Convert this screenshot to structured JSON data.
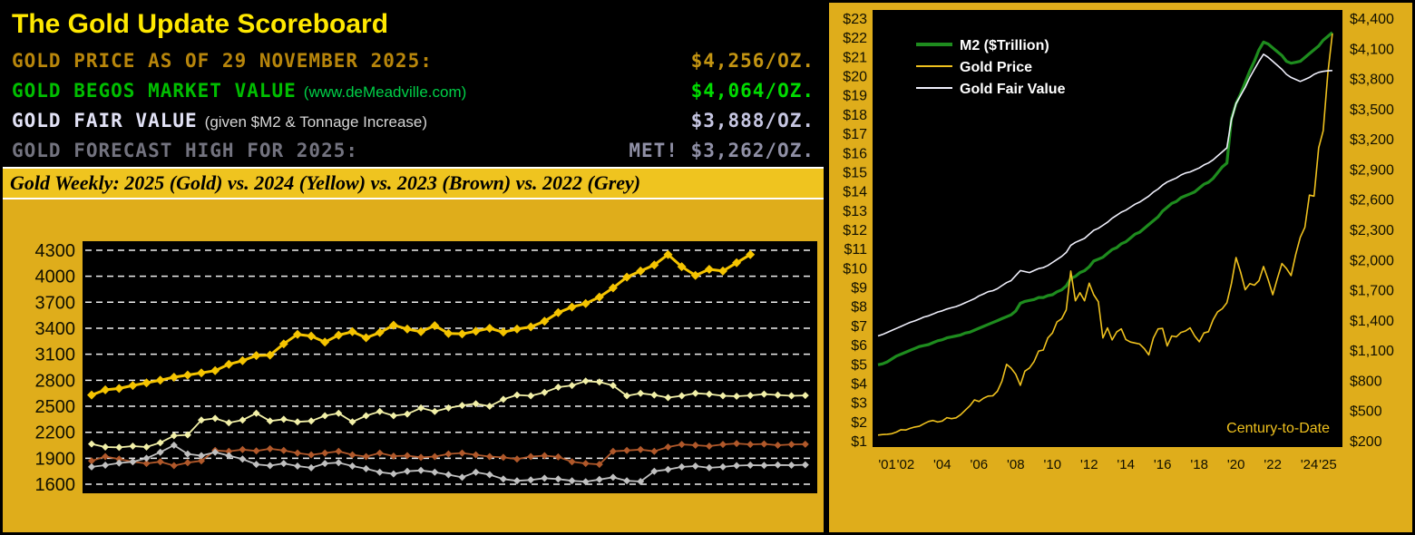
{
  "colors": {
    "page_background": "#DFAD1B",
    "scoreboard_background": "#000000",
    "banner_background": "#EFC41F",
    "divider": "#000000",
    "title": "#FFE800"
  },
  "scoreboard": {
    "title": "The Gold Update Scoreboard",
    "rows": [
      {
        "label": "GOLD PRICE AS OF 29 NOVEMBER 2025:",
        "note": "",
        "value": "$4,256/OZ.",
        "label_color": "#B8860B",
        "note_color": "#B8860B",
        "value_color": "#C49512"
      },
      {
        "label": "GOLD BEGOS MARKET VALUE",
        "note": "(www.deMeadville.com)",
        "value": "$4,064/OZ.",
        "label_color": "#00BE00",
        "note_color": "#00D048",
        "value_color": "#00DC00"
      },
      {
        "label": "GOLD FAIR VALUE",
        "note": "(given $M2 & Tonnage Increase)",
        "value": "$3,888/OZ.",
        "label_color": "#E2E2F6",
        "note_color": "#D6D6D6",
        "value_color": "#C6C6E2"
      },
      {
        "label": "GOLD FORECAST HIGH FOR 2025:",
        "note": "",
        "value": "MET! $3,262/OZ.",
        "label_color": "#73737F",
        "note_color": "#73737F",
        "value_color": "#9090A6"
      }
    ]
  },
  "banner": {
    "text": "Gold Weekly:  2025 (Gold) vs. 2024 (Yellow) vs. 2023 (Brown) vs. 2022 (Grey)"
  },
  "chart_data": [
    {
      "id": "weekly",
      "type": "line",
      "title": "Gold Weekly: 2025 (Gold) vs. 2024 (Yellow) vs. 2023 (Brown) vs. 2022 (Grey)",
      "plot_bg": "#000000",
      "grid": "dashed",
      "grid_color": "#F0F0F0",
      "tick_color": "#100F00",
      "ylim": [
        1496,
        4404
      ],
      "y_ticks": [
        4300,
        4000,
        3700,
        3400,
        3100,
        2800,
        2500,
        2200,
        1900,
        1600
      ],
      "x_slots": 53,
      "series": [
        {
          "name": "2025 (Gold)",
          "color": "#F5C400",
          "line_width": 3,
          "marker": "diamond",
          "marker_size": 5,
          "values": [
            2630,
            2690,
            2705,
            2740,
            2770,
            2800,
            2835,
            2860,
            2885,
            2910,
            2985,
            3025,
            3085,
            3090,
            3220,
            3330,
            3310,
            3240,
            3320,
            3360,
            3290,
            3350,
            3435,
            3390,
            3360,
            3430,
            3340,
            3335,
            3365,
            3400,
            3355,
            3390,
            3415,
            3480,
            3580,
            3645,
            3685,
            3760,
            3865,
            3990,
            4060,
            4130,
            4250,
            4110,
            4010,
            4080,
            4060,
            4155,
            4250
          ]
        },
        {
          "name": "2024 (Yellow)",
          "color": "#F2F0A8",
          "line_width": 1.8,
          "marker": "diamond",
          "marker_size": 4,
          "values": [
            2065,
            2030,
            2025,
            2040,
            2030,
            2080,
            2160,
            2170,
            2340,
            2360,
            2310,
            2340,
            2420,
            2330,
            2350,
            2320,
            2330,
            2390,
            2420,
            2320,
            2390,
            2440,
            2390,
            2410,
            2480,
            2440,
            2480,
            2510,
            2530,
            2500,
            2580,
            2630,
            2620,
            2660,
            2720,
            2740,
            2790,
            2780,
            2740,
            2620,
            2650,
            2630,
            2600,
            2620,
            2650,
            2640,
            2620,
            2615,
            2625,
            2640,
            2630,
            2620,
            2625
          ]
        },
        {
          "name": "2023 (Brown)",
          "color": "#B0582A",
          "line_width": 1.8,
          "marker": "diamond",
          "marker_size": 4,
          "values": [
            1870,
            1920,
            1890,
            1860,
            1840,
            1860,
            1815,
            1850,
            1870,
            1990,
            1980,
            2000,
            1985,
            2010,
            1990,
            1960,
            1940,
            1960,
            1980,
            1940,
            1920,
            1960,
            1925,
            1930,
            1910,
            1920,
            1950,
            1960,
            1940,
            1920,
            1910,
            1890,
            1920,
            1930,
            1915,
            1860,
            1840,
            1830,
            1980,
            1990,
            2000,
            1980,
            2030,
            2060,
            2050,
            2040,
            2060,
            2070,
            2060,
            2065,
            2050,
            2060,
            2062
          ]
        },
        {
          "name": "2022 (Grey)",
          "color": "#C0C0C0",
          "line_width": 1.8,
          "marker": "diamond",
          "marker_size": 4,
          "values": [
            1800,
            1820,
            1845,
            1860,
            1900,
            1970,
            2050,
            1950,
            1930,
            1970,
            1930,
            1890,
            1830,
            1815,
            1840,
            1810,
            1790,
            1840,
            1850,
            1810,
            1780,
            1740,
            1720,
            1750,
            1760,
            1740,
            1710,
            1680,
            1740,
            1710,
            1660,
            1640,
            1650,
            1670,
            1660,
            1640,
            1630,
            1655,
            1680,
            1640,
            1632,
            1750,
            1770,
            1800,
            1810,
            1790,
            1800,
            1815,
            1820,
            1818,
            1822,
            1820,
            1824
          ]
        }
      ]
    },
    {
      "id": "century",
      "type": "line",
      "annotation": "Century-to-Date",
      "annotation_color": "#EFC11E",
      "plot_bg": "#000000",
      "tick_color": "#100F00",
      "legend_text_color": "#FFFFFF",
      "left_lim": [
        1,
        23
      ],
      "right_lim": [
        200,
        4400
      ],
      "x_range": [
        2001,
        2026
      ],
      "left_ticks": [
        {
          "v": 23,
          "label": "$23"
        },
        {
          "v": 22,
          "label": "$22"
        },
        {
          "v": 21,
          "label": "$21"
        },
        {
          "v": 20,
          "label": "$20"
        },
        {
          "v": 19,
          "label": "$19"
        },
        {
          "v": 18,
          "label": "$18"
        },
        {
          "v": 17,
          "label": "$17"
        },
        {
          "v": 16,
          "label": "$16"
        },
        {
          "v": 15,
          "label": "$15"
        },
        {
          "v": 14,
          "label": "$14"
        },
        {
          "v": 13,
          "label": "$13"
        },
        {
          "v": 12,
          "label": "$12"
        },
        {
          "v": 11,
          "label": "$11"
        },
        {
          "v": 10,
          "label": "$10"
        },
        {
          "v": 9,
          "label": "$9"
        },
        {
          "v": 8,
          "label": "$8"
        },
        {
          "v": 7,
          "label": "$7"
        },
        {
          "v": 6,
          "label": "$6"
        },
        {
          "v": 5,
          "label": "$5"
        },
        {
          "v": 4,
          "label": "$4"
        },
        {
          "v": 3,
          "label": "$3"
        },
        {
          "v": 2,
          "label": "$2"
        },
        {
          "v": 1,
          "label": "$1"
        }
      ],
      "right_ticks": [
        {
          "v": 4400,
          "label": "$4,400"
        },
        {
          "v": 4100,
          "label": "$4,100"
        },
        {
          "v": 3800,
          "label": "$3,800"
        },
        {
          "v": 3500,
          "label": "$3,500"
        },
        {
          "v": 3200,
          "label": "$3,200"
        },
        {
          "v": 2900,
          "label": "$2,900"
        },
        {
          "v": 2600,
          "label": "$2,600"
        },
        {
          "v": 2300,
          "label": "$2,300"
        },
        {
          "v": 2000,
          "label": "$2,000"
        },
        {
          "v": 1700,
          "label": "$1,700"
        },
        {
          "v": 1400,
          "label": "$1,400"
        },
        {
          "v": 1100,
          "label": "$1,100"
        },
        {
          "v": 800,
          "label": "$800"
        },
        {
          "v": 500,
          "label": "$500"
        },
        {
          "v": 200,
          "label": "$200"
        }
      ],
      "x_ticks": [
        {
          "label": "'01",
          "year": 2001
        },
        {
          "label": "'02",
          "year": 2002
        },
        {
          "label": "'04",
          "year": 2004
        },
        {
          "label": "'06",
          "year": 2006
        },
        {
          "label": "'08",
          "year": 2008
        },
        {
          "label": "'10",
          "year": 2010
        },
        {
          "label": "'12",
          "year": 2012
        },
        {
          "label": "'14",
          "year": 2014
        },
        {
          "label": "'16",
          "year": 2016
        },
        {
          "label": "'18",
          "year": 2018
        },
        {
          "label": "'20",
          "year": 2020
        },
        {
          "label": "'22",
          "year": 2022
        },
        {
          "label": "'24",
          "year": 2024
        },
        {
          "label": "'25",
          "year": 2025
        }
      ],
      "legend": [
        {
          "label": "M2 ($Trillion)",
          "color": "#1E8C1E",
          "line_width": 4
        },
        {
          "label": "Gold Price",
          "color": "#EFC11E",
          "line_width": 2
        },
        {
          "label": "Gold Fair Value",
          "color": "#F0F0FC",
          "line_width": 2
        }
      ],
      "series": [
        {
          "name": "M2 ($Trillion)",
          "axis": "left",
          "color": "#1E8C1E",
          "line_width": 3.2,
          "x_start": 2001.0,
          "x_step": 0.25,
          "values": [
            5.0,
            5.05,
            5.15,
            5.3,
            5.45,
            5.55,
            5.65,
            5.75,
            5.85,
            5.95,
            6.0,
            6.05,
            6.15,
            6.25,
            6.3,
            6.4,
            6.45,
            6.5,
            6.55,
            6.65,
            6.7,
            6.8,
            6.9,
            7.0,
            7.1,
            7.2,
            7.3,
            7.4,
            7.5,
            7.6,
            7.8,
            8.2,
            8.3,
            8.35,
            8.4,
            8.5,
            8.5,
            8.6,
            8.65,
            8.8,
            8.9,
            9.1,
            9.5,
            9.6,
            9.8,
            9.9,
            10.1,
            10.4,
            10.5,
            10.6,
            10.8,
            11.0,
            11.1,
            11.3,
            11.4,
            11.6,
            11.8,
            11.9,
            12.1,
            12.3,
            12.5,
            12.7,
            13.0,
            13.2,
            13.4,
            13.5,
            13.7,
            13.8,
            13.9,
            14.0,
            14.2,
            14.4,
            14.5,
            14.7,
            15.0,
            15.3,
            15.5,
            17.8,
            18.6,
            19.1,
            19.7,
            20.3,
            20.8,
            21.4,
            21.8,
            21.7,
            21.5,
            21.3,
            21.1,
            20.8,
            20.7,
            20.75,
            20.8,
            21.0,
            21.2,
            21.4,
            21.6,
            21.9,
            22.1,
            22.3
          ]
        },
        {
          "name": "Gold Price",
          "axis": "right",
          "color": "#EFC11E",
          "line_width": 1.6,
          "x_start": 2001.0,
          "x_step": 0.25,
          "values": [
            265,
            270,
            273,
            278,
            295,
            318,
            315,
            332,
            345,
            352,
            378,
            400,
            410,
            395,
            405,
            438,
            428,
            436,
            468,
            512,
            555,
            615,
            598,
            632,
            652,
            655,
            700,
            800,
            968,
            930,
            870,
            760,
            900,
            932,
            995,
            1100,
            1110,
            1230,
            1280,
            1390,
            1420,
            1510,
            1895,
            1600,
            1680,
            1600,
            1775,
            1660,
            1590,
            1230,
            1330,
            1210,
            1290,
            1320,
            1215,
            1190,
            1180,
            1170,
            1125,
            1062,
            1230,
            1320,
            1325,
            1150,
            1250,
            1242,
            1285,
            1300,
            1330,
            1250,
            1192,
            1280,
            1292,
            1410,
            1490,
            1520,
            1580,
            1770,
            2030,
            1885,
            1710,
            1770,
            1755,
            1800,
            1940,
            1810,
            1660,
            1820,
            1970,
            1920,
            1850,
            2060,
            2230,
            2330,
            2650,
            2640,
            3120,
            3290,
            3860,
            4256
          ]
        },
        {
          "name": "Gold Fair Value",
          "axis": "right",
          "color": "#F0F0FC",
          "line_width": 1.6,
          "x_start": 2001.0,
          "x_step": 0.25,
          "values": [
            1250,
            1265,
            1285,
            1305,
            1325,
            1345,
            1365,
            1385,
            1400,
            1418,
            1438,
            1450,
            1468,
            1488,
            1500,
            1518,
            1530,
            1542,
            1560,
            1580,
            1600,
            1620,
            1648,
            1668,
            1690,
            1700,
            1720,
            1750,
            1780,
            1800,
            1850,
            1900,
            1890,
            1880,
            1900,
            1920,
            1930,
            1950,
            1980,
            2010,
            2040,
            2080,
            2150,
            2180,
            2200,
            2220,
            2260,
            2300,
            2320,
            2350,
            2380,
            2420,
            2450,
            2480,
            2500,
            2530,
            2560,
            2580,
            2610,
            2640,
            2680,
            2710,
            2750,
            2780,
            2800,
            2820,
            2850,
            2870,
            2880,
            2900,
            2920,
            2950,
            2970,
            3000,
            3040,
            3080,
            3120,
            3400,
            3560,
            3640,
            3720,
            3820,
            3900,
            3980,
            4050,
            4020,
            3980,
            3940,
            3900,
            3850,
            3820,
            3800,
            3780,
            3800,
            3820,
            3850,
            3870,
            3880,
            3885,
            3888
          ]
        }
      ]
    }
  ]
}
